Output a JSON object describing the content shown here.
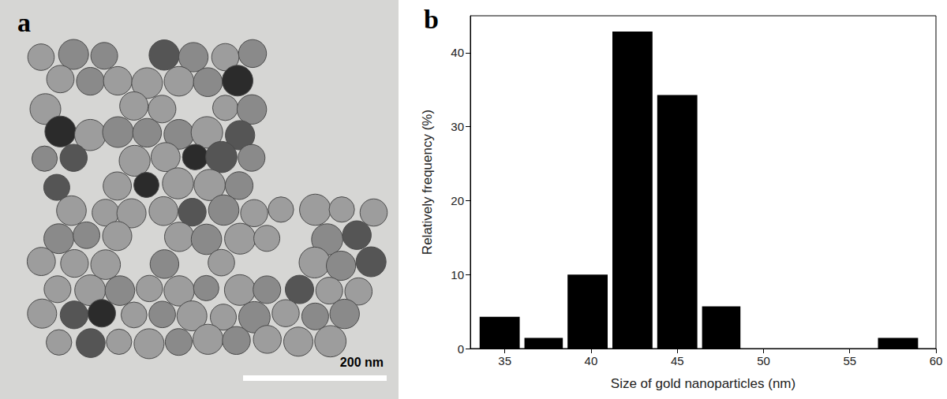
{
  "image_panel": {
    "label": "a",
    "scale_bar": "200 nm"
  },
  "chart_data": {
    "type": "histogram",
    "title": "b",
    "x_label": "Size of gold nanoparticles (nm)",
    "y_label": "Relatively frequency (%)",
    "bins": [
      33.4,
      36.0,
      38.5,
      41.1,
      43.7,
      46.3,
      48.8,
      51.4,
      54.0,
      56.5,
      59.1
    ],
    "values": [
      4.29,
      1.43,
      10,
      42.86,
      34.29,
      5.71,
      0,
      0,
      0,
      1.43
    ],
    "color": "#000000",
    "xlim": [
      33,
      60
    ],
    "xticks": [
      35,
      40,
      45,
      50,
      55,
      60
    ],
    "ylim": [
      0,
      45
    ],
    "yticks": [
      0,
      10,
      20,
      30,
      40
    ],
    "grid": false
  }
}
